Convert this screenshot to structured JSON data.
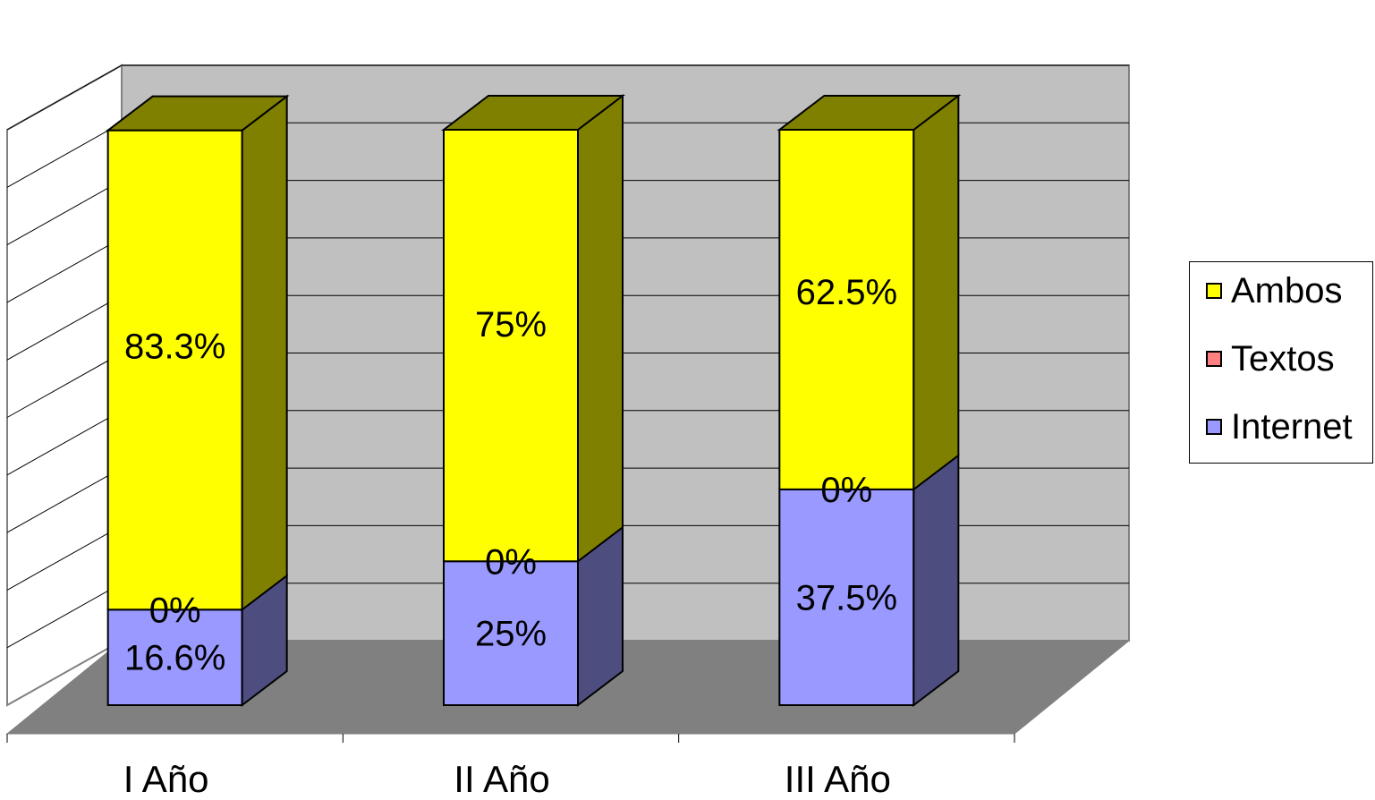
{
  "chart_data": {
    "type": "bar",
    "stacked": true,
    "three_d": true,
    "categories": [
      "I Año",
      "II Año",
      "III Año"
    ],
    "series": [
      {
        "name": "Internet",
        "values": [
          16.6,
          25,
          37.5
        ],
        "labels": [
          "16.6%",
          "25%",
          "37.5%"
        ],
        "color": "#9999ff"
      },
      {
        "name": "Textos",
        "values": [
          0,
          0,
          0
        ],
        "labels": [
          "0%",
          "0%",
          "0%"
        ],
        "color": "#ff8080"
      },
      {
        "name": "Ambos",
        "values": [
          83.3,
          75,
          62.5
        ],
        "labels": [
          "83.3%",
          "75%",
          "62.5%"
        ],
        "color": "#ffff00"
      }
    ],
    "ylim": [
      0,
      100
    ],
    "grid": true,
    "legend_position": "right",
    "legend_order": [
      "Ambos",
      "Textos",
      "Internet"
    ],
    "colors": {
      "back_wall": "#c0c0c0",
      "floor": "#808080",
      "side_wall": "#ffffff",
      "ambos_side": "#808000",
      "internet_side": "#4d4d80"
    }
  }
}
